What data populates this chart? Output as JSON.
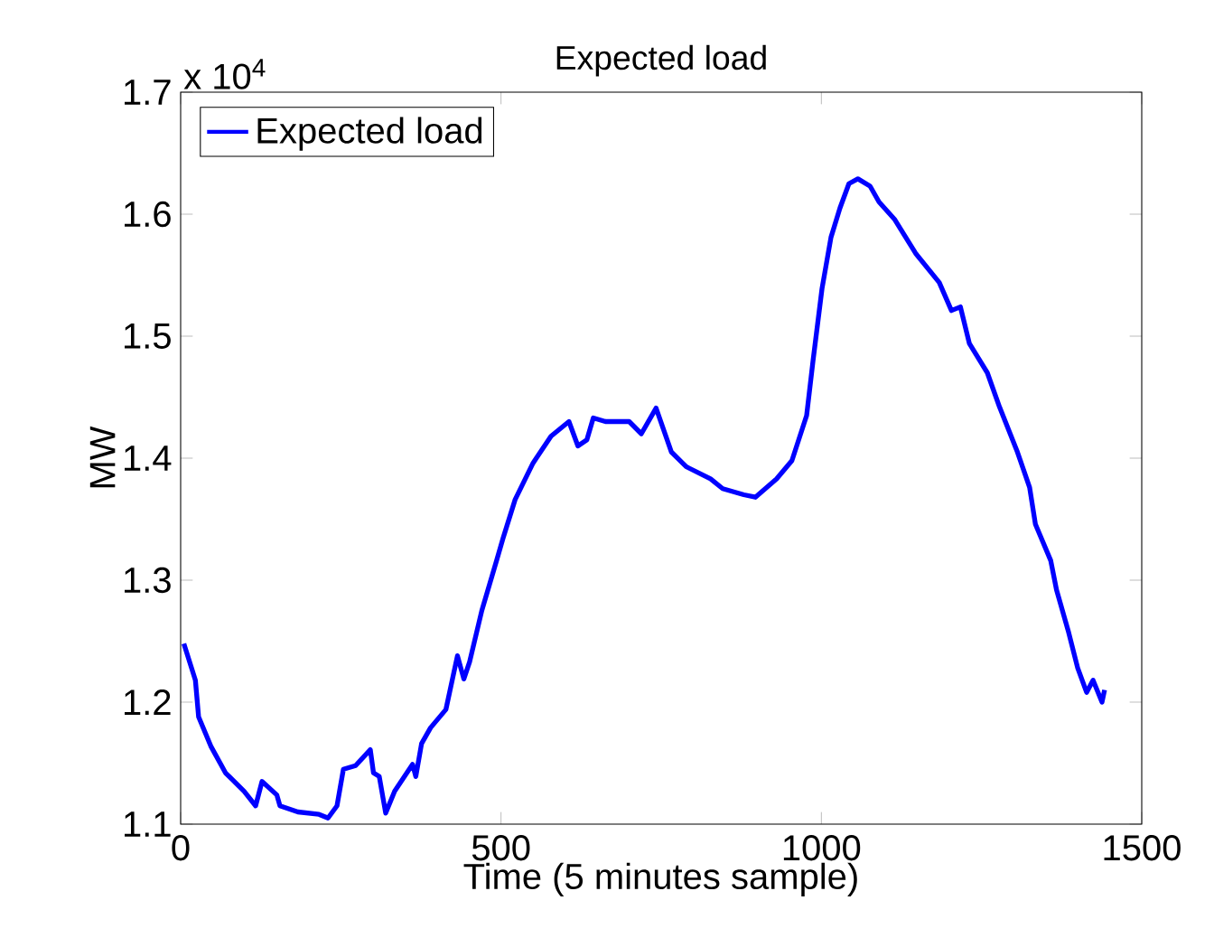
{
  "chart_data": {
    "type": "line",
    "title": "Expected load",
    "xlabel": "Time (5 minutes sample)",
    "ylabel": "MW",
    "annotations": [
      "x 10$^{4}$"
    ],
    "xlim": [
      0,
      1500
    ],
    "xticks": [
      0,
      500,
      1000,
      1500
    ],
    "ylim": [
      1.1,
      1.7
    ],
    "yticks": [
      1.1,
      1.2,
      1.3,
      1.4,
      1.5,
      1.6,
      1.7
    ],
    "grid": false,
    "legend": "top left",
    "marker": "none",
    "line_style": "solid",
    "series": [
      {
        "name": "Expected load",
        "color": "#0000ff",
        "x": [
          5,
          23,
          28,
          47,
          70,
          99,
          117,
          127,
          150,
          155,
          183,
          216,
          230,
          244,
          254,
          273,
          296,
          301,
          310,
          320,
          334,
          362,
          367,
          376,
          390,
          414,
          432,
          442,
          451,
          470,
          493,
          503,
          522,
          550,
          578,
          606,
          620,
          634,
          644,
          663,
          700,
          719,
          742,
          766,
          789,
          827,
          846,
          879,
          897,
          930,
          954,
          977,
          987,
          1001,
          1015,
          1029,
          1043,
          1057,
          1076,
          1090,
          1114,
          1147,
          1184,
          1203,
          1217,
          1231,
          1259,
          1278,
          1306,
          1325,
          1334,
          1358,
          1367,
          1386,
          1400,
          1414,
          1424,
          1438,
          1442
        ],
        "values": [
          1.248,
          1.218,
          1.188,
          1.164,
          1.142,
          1.127,
          1.115,
          1.135,
          1.124,
          1.115,
          1.11,
          1.108,
          1.105,
          1.115,
          1.145,
          1.148,
          1.161,
          1.142,
          1.139,
          1.109,
          1.127,
          1.149,
          1.139,
          1.166,
          1.179,
          1.194,
          1.238,
          1.219,
          1.233,
          1.275,
          1.316,
          1.334,
          1.366,
          1.396,
          1.418,
          1.43,
          1.41,
          1.415,
          1.433,
          1.43,
          1.43,
          1.42,
          1.441,
          1.405,
          1.393,
          1.383,
          1.375,
          1.37,
          1.368,
          1.383,
          1.398,
          1.435,
          1.48,
          1.539,
          1.581,
          1.605,
          1.625,
          1.629,
          1.623,
          1.61,
          1.596,
          1.568,
          1.544,
          1.521,
          1.524,
          1.494,
          1.47,
          1.442,
          1.405,
          1.376,
          1.346,
          1.316,
          1.292,
          1.257,
          1.228,
          1.208,
          1.218,
          1.2,
          1.21
        ]
      }
    ]
  }
}
